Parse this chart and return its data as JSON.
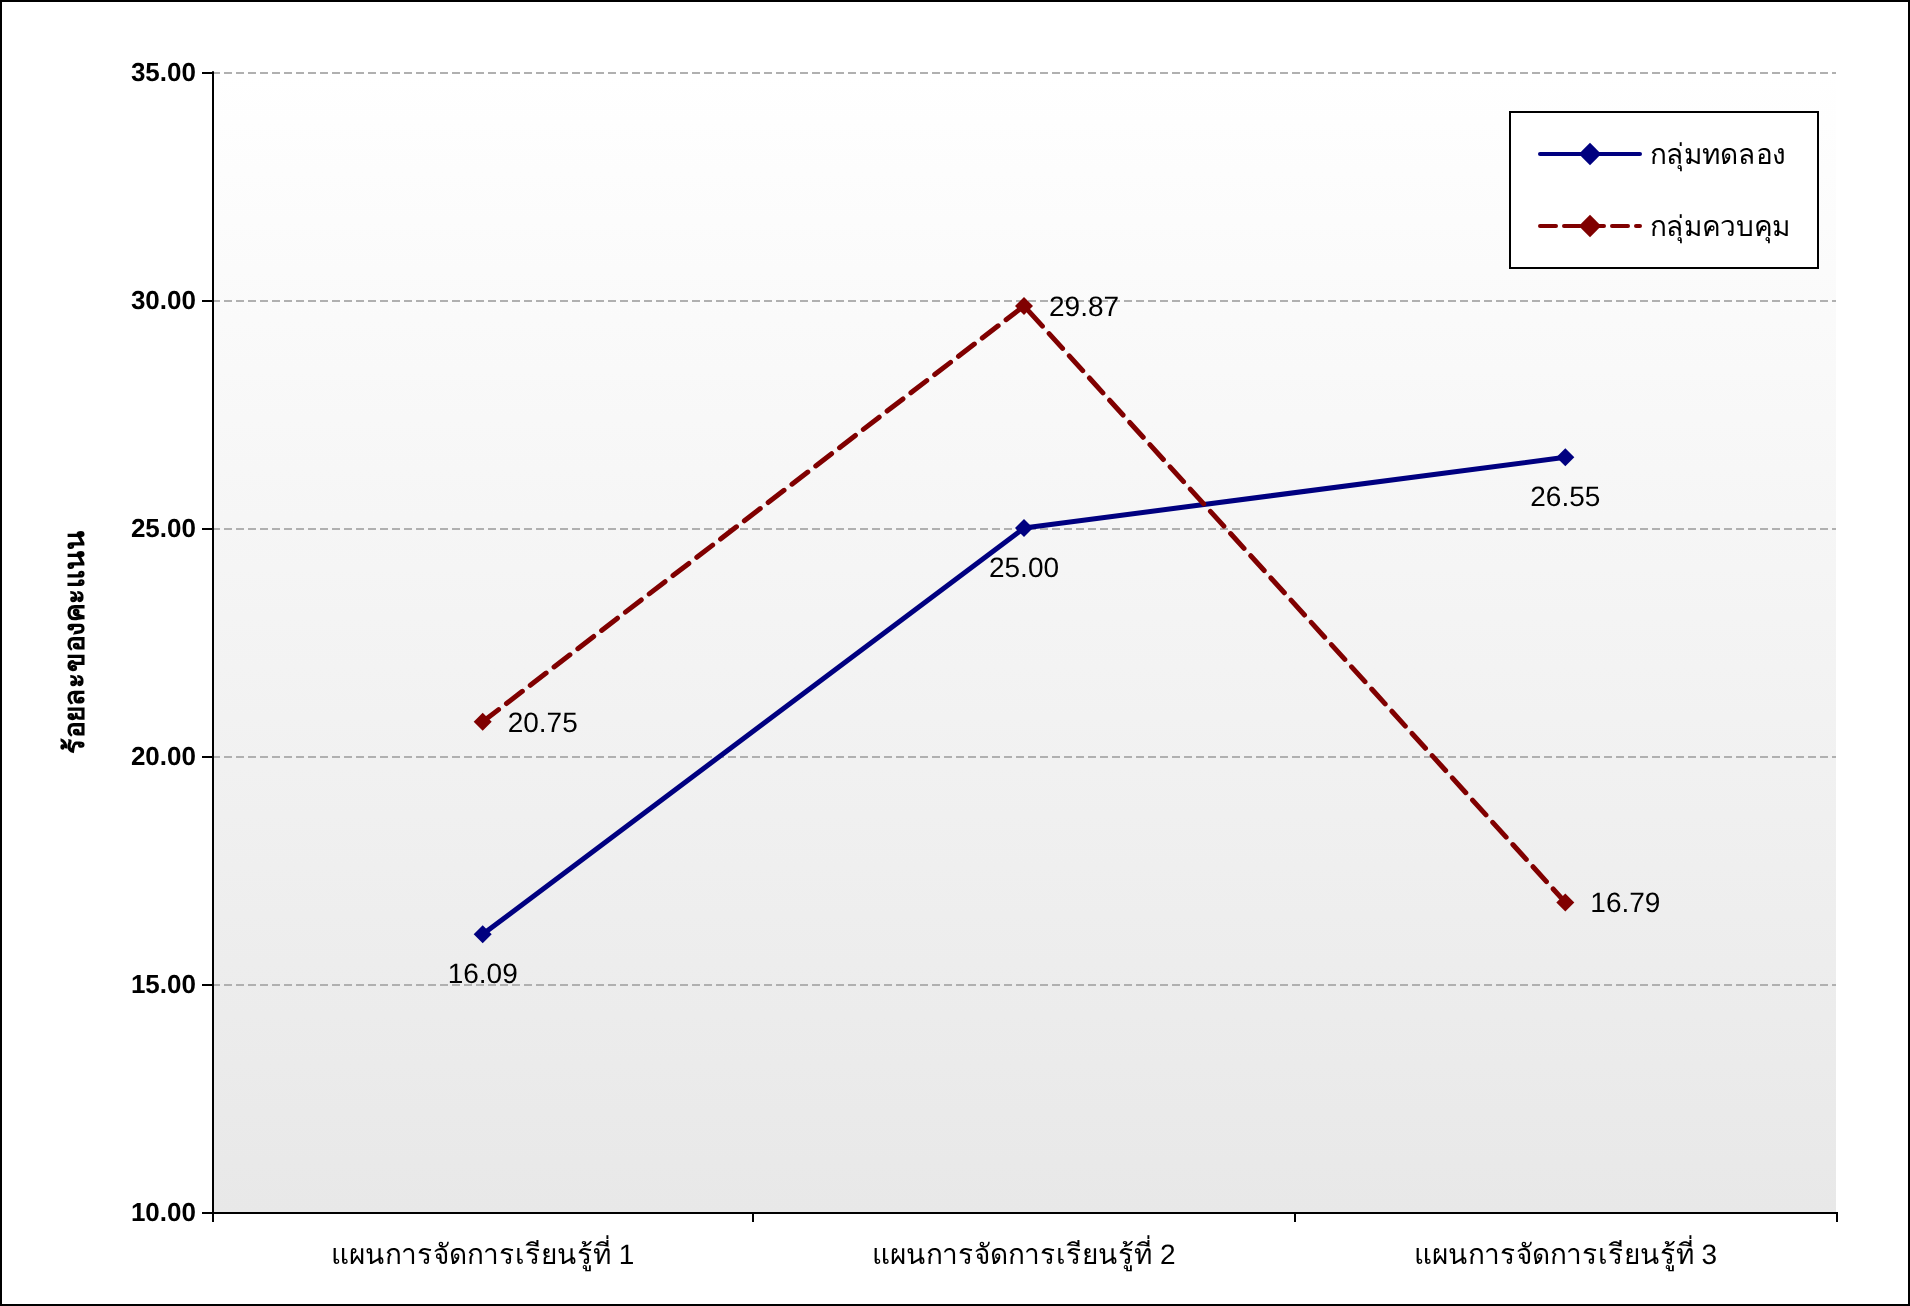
{
  "chart_data": {
    "type": "line",
    "ylabel": "ร้อยละของคะแนน",
    "categories": [
      "แผนการจัดการเรียนรู้ที่ 1",
      "แผนการจัดการเรียนรู้ที่ 2",
      "แผนการจัดการเรียนรู้ที่ 3"
    ],
    "series": [
      {
        "name": "กลุ่มทดลอง",
        "color": "#000080",
        "values": [
          16.09,
          25.0,
          26.55
        ],
        "value_labels": [
          "16.09",
          "25.00",
          "26.55"
        ],
        "line_style": "solid"
      },
      {
        "name": "กลุ่มควบคุม",
        "color": "#800000",
        "values": [
          20.75,
          29.87,
          16.79
        ],
        "value_labels": [
          "20.75",
          "29.87",
          "16.79"
        ],
        "line_style": "dashed"
      }
    ],
    "ylim": [
      10,
      35
    ],
    "yticks": [
      {
        "value": 10,
        "label": "10.00"
      },
      {
        "value": 15,
        "label": "15.00"
      },
      {
        "value": 20,
        "label": "20.00"
      },
      {
        "value": 25,
        "label": "25.00"
      },
      {
        "value": 30,
        "label": "30.00"
      },
      {
        "value": 35,
        "label": "35.00"
      }
    ],
    "grid": "y",
    "legend": "top right",
    "marker": "diamond"
  }
}
